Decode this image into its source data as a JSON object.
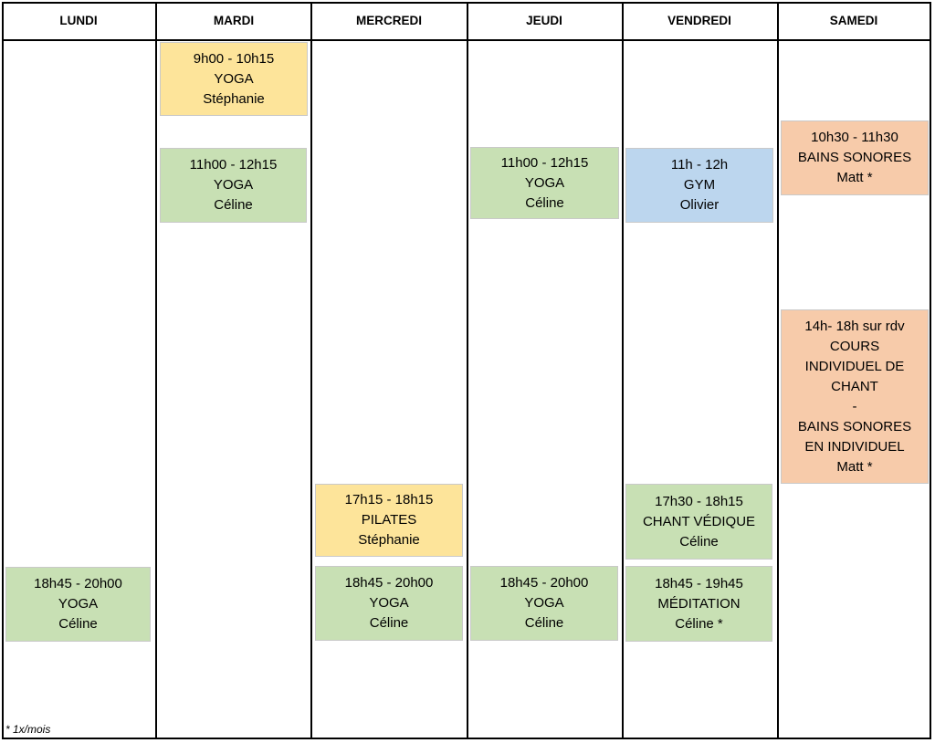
{
  "days": [
    "LUNDI",
    "MARDI",
    "MERCREDI",
    "JEUDI",
    "VENDREDI",
    "SAMEDI"
  ],
  "colors": {
    "yellow": "#fde49a",
    "green": "#c8e0b4",
    "blue": "#bcd6ee",
    "orange": "#f7cbaa"
  },
  "classes": {
    "lundi_yoga": {
      "time": "18h45 - 20h00",
      "name": "YOGA",
      "teacher": "Céline"
    },
    "mardi_yoga_1": {
      "time": "9h00 - 10h15",
      "name": "YOGA",
      "teacher": "Stéphanie"
    },
    "mardi_yoga_2": {
      "time": "11h00 - 12h15",
      "name": "YOGA",
      "teacher": "Céline"
    },
    "mercredi_pilates": {
      "time": "17h15 - 18h15",
      "name": "PILATES",
      "teacher": "Stéphanie"
    },
    "mercredi_yoga": {
      "time": "18h45 - 20h00",
      "name": "YOGA",
      "teacher": "Céline"
    },
    "jeudi_yoga_1": {
      "time": "11h00 - 12h15",
      "name": "YOGA",
      "teacher": "Céline"
    },
    "jeudi_yoga_2": {
      "time": "18h45 - 20h00",
      "name": "YOGA",
      "teacher": "Céline"
    },
    "vendredi_gym": {
      "time": "11h - 12h",
      "name": "GYM",
      "teacher": "Olivier"
    },
    "vendredi_chant": {
      "time": "17h30 - 18h15",
      "name": "CHANT VÉDIQUE",
      "teacher": "Céline"
    },
    "vendredi_meditation": {
      "time": "18h45 - 19h45",
      "name": "MÉDITATION",
      "teacher": "Céline *"
    },
    "samedi_bains": {
      "time": "10h30 - 11h30",
      "name": "BAINS SONORES",
      "teacher": "Matt *"
    },
    "samedi_individuel": {
      "lines": [
        "14h- 18h sur rdv",
        "COURS",
        "INDIVIDUEL DE",
        "CHANT",
        "-",
        "BAINS SONORES",
        "EN INDIVIDUEL",
        "Matt *"
      ]
    }
  },
  "footnote": "* 1x/mois"
}
